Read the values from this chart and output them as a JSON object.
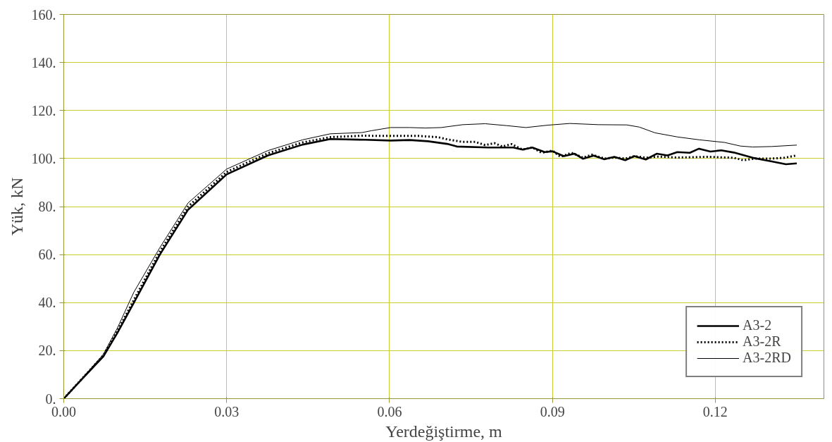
{
  "chart_data": {
    "type": "line",
    "xlabel": "Yerdeğiştirme, m",
    "ylabel": "Yük, kN",
    "xlim": [
      0,
      0.14
    ],
    "ylim": [
      0,
      160
    ],
    "xticks": [
      {
        "value": 0,
        "label": "0.00"
      },
      {
        "value": 0.03,
        "label": "0.03"
      },
      {
        "value": 0.06,
        "label": "0.06"
      },
      {
        "value": 0.09,
        "label": "0.09"
      },
      {
        "value": 0.12,
        "label": "0.12"
      }
    ],
    "yticks": [
      {
        "value": 0,
        "label": "0."
      },
      {
        "value": 20,
        "label": "20."
      },
      {
        "value": 40,
        "label": "40."
      },
      {
        "value": 60,
        "label": "60."
      },
      {
        "value": 80,
        "label": "80."
      },
      {
        "value": 100,
        "label": "100."
      },
      {
        "value": 120,
        "label": "120."
      },
      {
        "value": 140,
        "label": "140."
      },
      {
        "value": 160,
        "label": "160."
      }
    ],
    "grid": true,
    "legend": "bottom right",
    "marker": "none",
    "series": [
      {
        "name": "A3-2",
        "color": "#000000",
        "line_style": "solid",
        "x": [
          0,
          0.003,
          0.0073,
          0.0099,
          0.013,
          0.0177,
          0.0229,
          0.03,
          0.0376,
          0.044,
          0.0491,
          0.0555,
          0.0602,
          0.0637,
          0.0671,
          0.0706,
          0.0724,
          0.0782,
          0.0828,
          0.0845,
          0.0863,
          0.0886,
          0.09,
          0.0921,
          0.0941,
          0.0956,
          0.0976,
          0.0995,
          0.1014,
          0.1034,
          0.1051,
          0.1072,
          0.1092,
          0.1112,
          0.113,
          0.1153,
          0.117,
          0.1191,
          0.1211,
          0.1234,
          0.1269,
          0.1304,
          0.133,
          0.135
        ],
        "values": [
          0,
          7.3,
          17.6,
          27.5,
          40.3,
          60,
          78.7,
          93.4,
          101.3,
          105.8,
          108.1,
          107.8,
          107.5,
          107.7,
          107.2,
          106.1,
          105,
          104.6,
          104.6,
          103.7,
          104.6,
          102.7,
          103,
          101,
          102,
          99.9,
          101.2,
          99.7,
          100.7,
          99.3,
          101,
          99.6,
          102,
          101.3,
          102.7,
          102.4,
          104.1,
          102.9,
          103.4,
          102.5,
          100.3,
          98.8,
          97.6,
          98
        ]
      },
      {
        "name": "A3-2R",
        "color": "#000000",
        "line_style": "dotted",
        "x": [
          0,
          0.003,
          0.0073,
          0.0099,
          0.013,
          0.0177,
          0.0229,
          0.03,
          0.0376,
          0.044,
          0.0491,
          0.0549,
          0.0602,
          0.0654,
          0.0689,
          0.0706,
          0.0735,
          0.0758,
          0.0776,
          0.0793,
          0.0808,
          0.0825,
          0.0845,
          0.0863,
          0.088,
          0.09,
          0.0915,
          0.0935,
          0.0956,
          0.0973,
          0.0996,
          0.1014,
          0.1034,
          0.1051,
          0.1072,
          0.1095,
          0.113,
          0.1187,
          0.1234,
          0.1251,
          0.1274,
          0.1304,
          0.1327,
          0.135
        ],
        "values": [
          0,
          7.4,
          18,
          28.3,
          41.5,
          61.3,
          80,
          94.4,
          102.2,
          106.7,
          108.9,
          109.5,
          109.4,
          109.4,
          108.9,
          108,
          106.9,
          106.9,
          105.6,
          106.4,
          105,
          106,
          103.7,
          104.6,
          102.4,
          103.3,
          100.7,
          102.4,
          100.4,
          101.6,
          100,
          100.4,
          100,
          101,
          100.3,
          100.8,
          100.4,
          100.7,
          100.3,
          99.3,
          100,
          100,
          100.3,
          101.3
        ]
      },
      {
        "name": "A3-2RD",
        "color": "#000000",
        "line_style": "solid",
        "x": [
          0,
          0.003,
          0.0073,
          0.0099,
          0.0129,
          0.0177,
          0.0229,
          0.03,
          0.0376,
          0.044,
          0.0491,
          0.0549,
          0.0567,
          0.0602,
          0.0637,
          0.0666,
          0.0695,
          0.0735,
          0.0776,
          0.0816,
          0.0851,
          0.0892,
          0.0932,
          0.0985,
          0.1037,
          0.106,
          0.1089,
          0.113,
          0.117,
          0.1217,
          0.1246,
          0.1269,
          0.1304,
          0.135
        ],
        "values": [
          0,
          7.5,
          18.5,
          29.5,
          44.3,
          62.9,
          81.5,
          95.6,
          103.3,
          107.8,
          110.3,
          110.8,
          111.6,
          112.9,
          112.9,
          112.7,
          112.9,
          114.1,
          114.5,
          113.7,
          112.9,
          113.9,
          114.6,
          114.1,
          114,
          113.1,
          110.7,
          109,
          107.8,
          106.7,
          105.2,
          104.8,
          105,
          105.6
        ]
      }
    ]
  }
}
